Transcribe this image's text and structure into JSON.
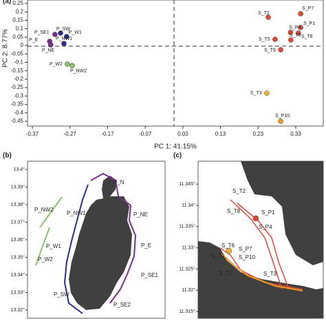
{
  "chart_data": [
    {
      "type": "scatter",
      "panel": "(a)",
      "x_label": "PC 1: 41.15%",
      "y_label": "PC 2: 8.77%",
      "labels": [
        "P_SE1",
        "P_SW",
        "P_W1",
        "P_E",
        "P_NE",
        "P_NW1",
        "P_W2",
        "P_NW2",
        "S_T2",
        "S_P7",
        "S_P1",
        "S_P4",
        "S_T8",
        "S_T5",
        "S_T6",
        "S_T9",
        "S_T3",
        "S_P10"
      ],
      "x": [
        -0.31,
        -0.295,
        -0.279,
        -0.324,
        -0.321,
        -0.286,
        -0.277,
        -0.264,
        0.257,
        0.343,
        0.343,
        0.316,
        0.337,
        0.275,
        0.317,
        0.29,
        0.253,
        0.29
      ],
      "y": [
        0.066,
        0.074,
        0.053,
        0.025,
        0.004,
        0.012,
        -0.11,
        -0.119,
        0.168,
        0.189,
        0.107,
        0.078,
        0.074,
        0.037,
        0.033,
        -0.025,
        -0.283,
        -0.45
      ],
      "colors": [
        "#7b2d8e",
        "#2b2d8f",
        "#2b2d8f",
        "#7b2d8e",
        "#7b2d8e",
        "#2b2d8f",
        "#8bc36a",
        "#8bc36a",
        "#e0493a",
        "#e0493a",
        "#e0493a",
        "#e0493a",
        "#e0493a",
        "#e0493a",
        "#e0493a",
        "#e0493a",
        "#f2b233",
        "#f29a22"
      ],
      "xlim": [
        -0.3828,
        0.4031
      ],
      "ylim": [
        -0.4787,
        0.2705
      ],
      "xticks": [
        -0.37,
        -0.27,
        -0.17,
        -0.07,
        0.03,
        0.13,
        0.23,
        0.33
      ],
      "yticks": [
        0.25,
        0.2,
        0.15,
        0.1,
        0.05,
        0,
        -0.05,
        -0.1,
        -0.15,
        -0.2,
        -0.25,
        -0.3,
        -0.35,
        -0.4,
        -0.45
      ]
    },
    {
      "type": "map",
      "panel": "(b)",
      "ylim": [
        13.3153,
        13.4047
      ],
      "yticks": [
        {
          "value": 13.4,
          "label": "13.4°"
        },
        {
          "value": 13.39,
          "label": "13.39°"
        },
        {
          "value": 13.38,
          "label": "13.38°"
        },
        {
          "value": 13.37,
          "label": "13.37°"
        },
        {
          "value": 13.36,
          "label": "13.36°"
        },
        {
          "value": 13.35,
          "label": "13.35°"
        },
        {
          "value": 13.34,
          "label": "13.34°"
        },
        {
          "value": 13.33,
          "label": "13.33°"
        },
        {
          "value": 13.32,
          "label": "13.32°"
        }
      ],
      "sites": [
        "P_N",
        "P_NE",
        "P_NW1",
        "P_NW2",
        "P_W1",
        "P_W2",
        "P_E",
        "P_SE1",
        "P_SW",
        "P_SE2"
      ]
    },
    {
      "type": "map",
      "panel": "(c)",
      "ylim": [
        11.3134,
        11.3504
      ],
      "yticks": [
        {
          "value": 11.345,
          "label": "11.345°"
        },
        {
          "value": 11.34,
          "label": "11.34°"
        },
        {
          "value": 11.335,
          "label": "11.335°"
        },
        {
          "value": 11.33,
          "label": "11.33°"
        },
        {
          "value": 11.325,
          "label": "11.325°"
        },
        {
          "value": 11.32,
          "label": "11.32°"
        },
        {
          "value": 11.315,
          "label": "11.315°"
        }
      ],
      "sites": [
        "S_T2",
        "S_T8",
        "S_P1",
        "S_P4",
        "S_T6",
        "S_P7",
        "S_T9",
        "S_P10",
        "S_T5",
        "S_T3"
      ]
    }
  ]
}
